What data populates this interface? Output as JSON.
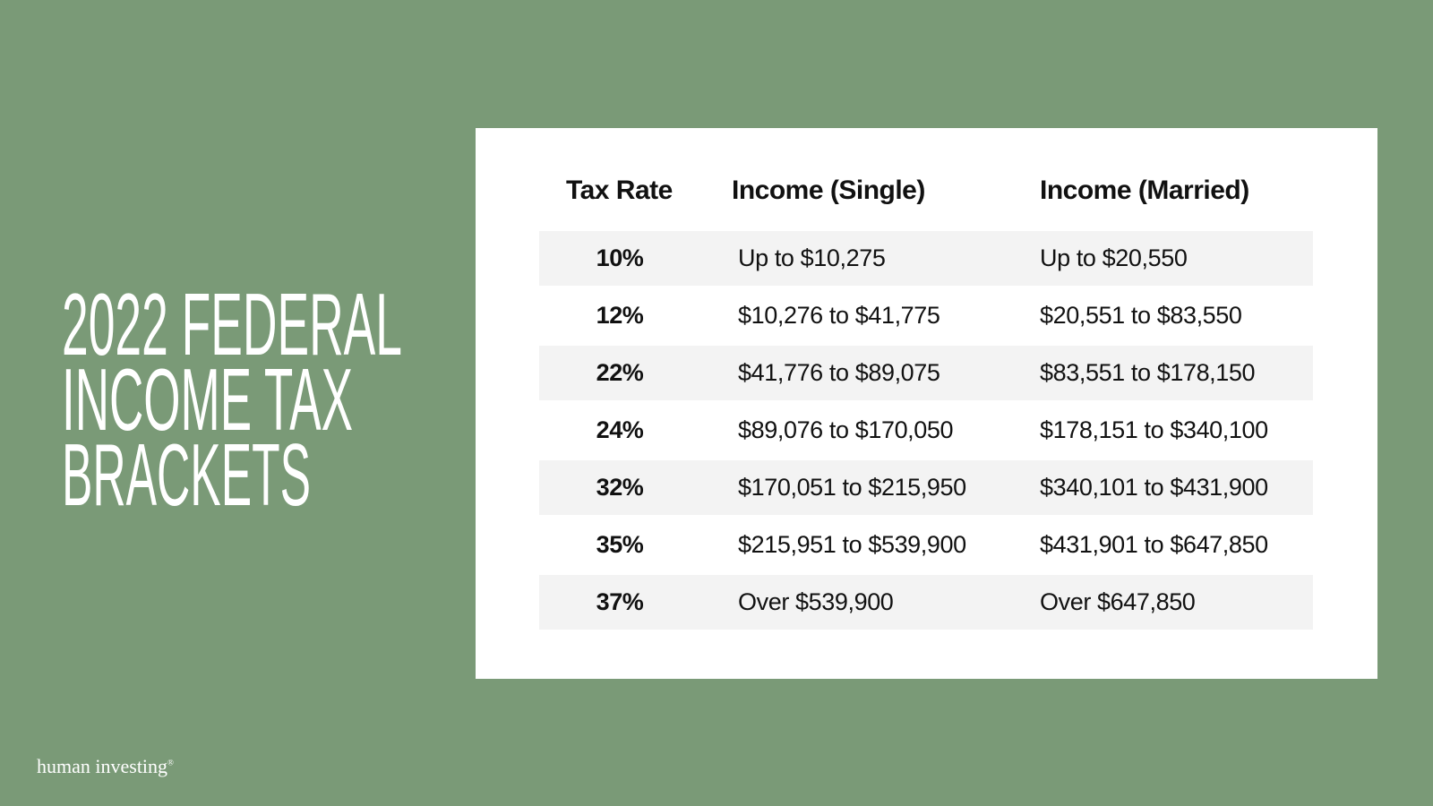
{
  "title": [
    "2022 FEDERAL",
    "INCOME TAX",
    "BRACKETS"
  ],
  "table": {
    "headers": [
      "Tax Rate",
      "Income (Single)",
      "Income (Married)"
    ],
    "rows": [
      [
        "10%",
        "Up to $10,275",
        "Up to $20,550"
      ],
      [
        "12%",
        "$10,276 to $41,775",
        "$20,551 to $83,550"
      ],
      [
        "22%",
        "$41,776 to $89,075",
        "$83,551 to $178,150"
      ],
      [
        "24%",
        "$89,076 to $170,050",
        "$178,151 to $340,100"
      ],
      [
        "32%",
        "$170,051 to $215,950",
        "$340,101 to $431,900"
      ],
      [
        "35%",
        "$215,951 to $539,900",
        "$431,901 to $647,850"
      ],
      [
        "37%",
        "Over $539,900",
        "Over $647,850"
      ]
    ]
  },
  "footer": {
    "logo": "human investing",
    "mark": "®"
  }
}
